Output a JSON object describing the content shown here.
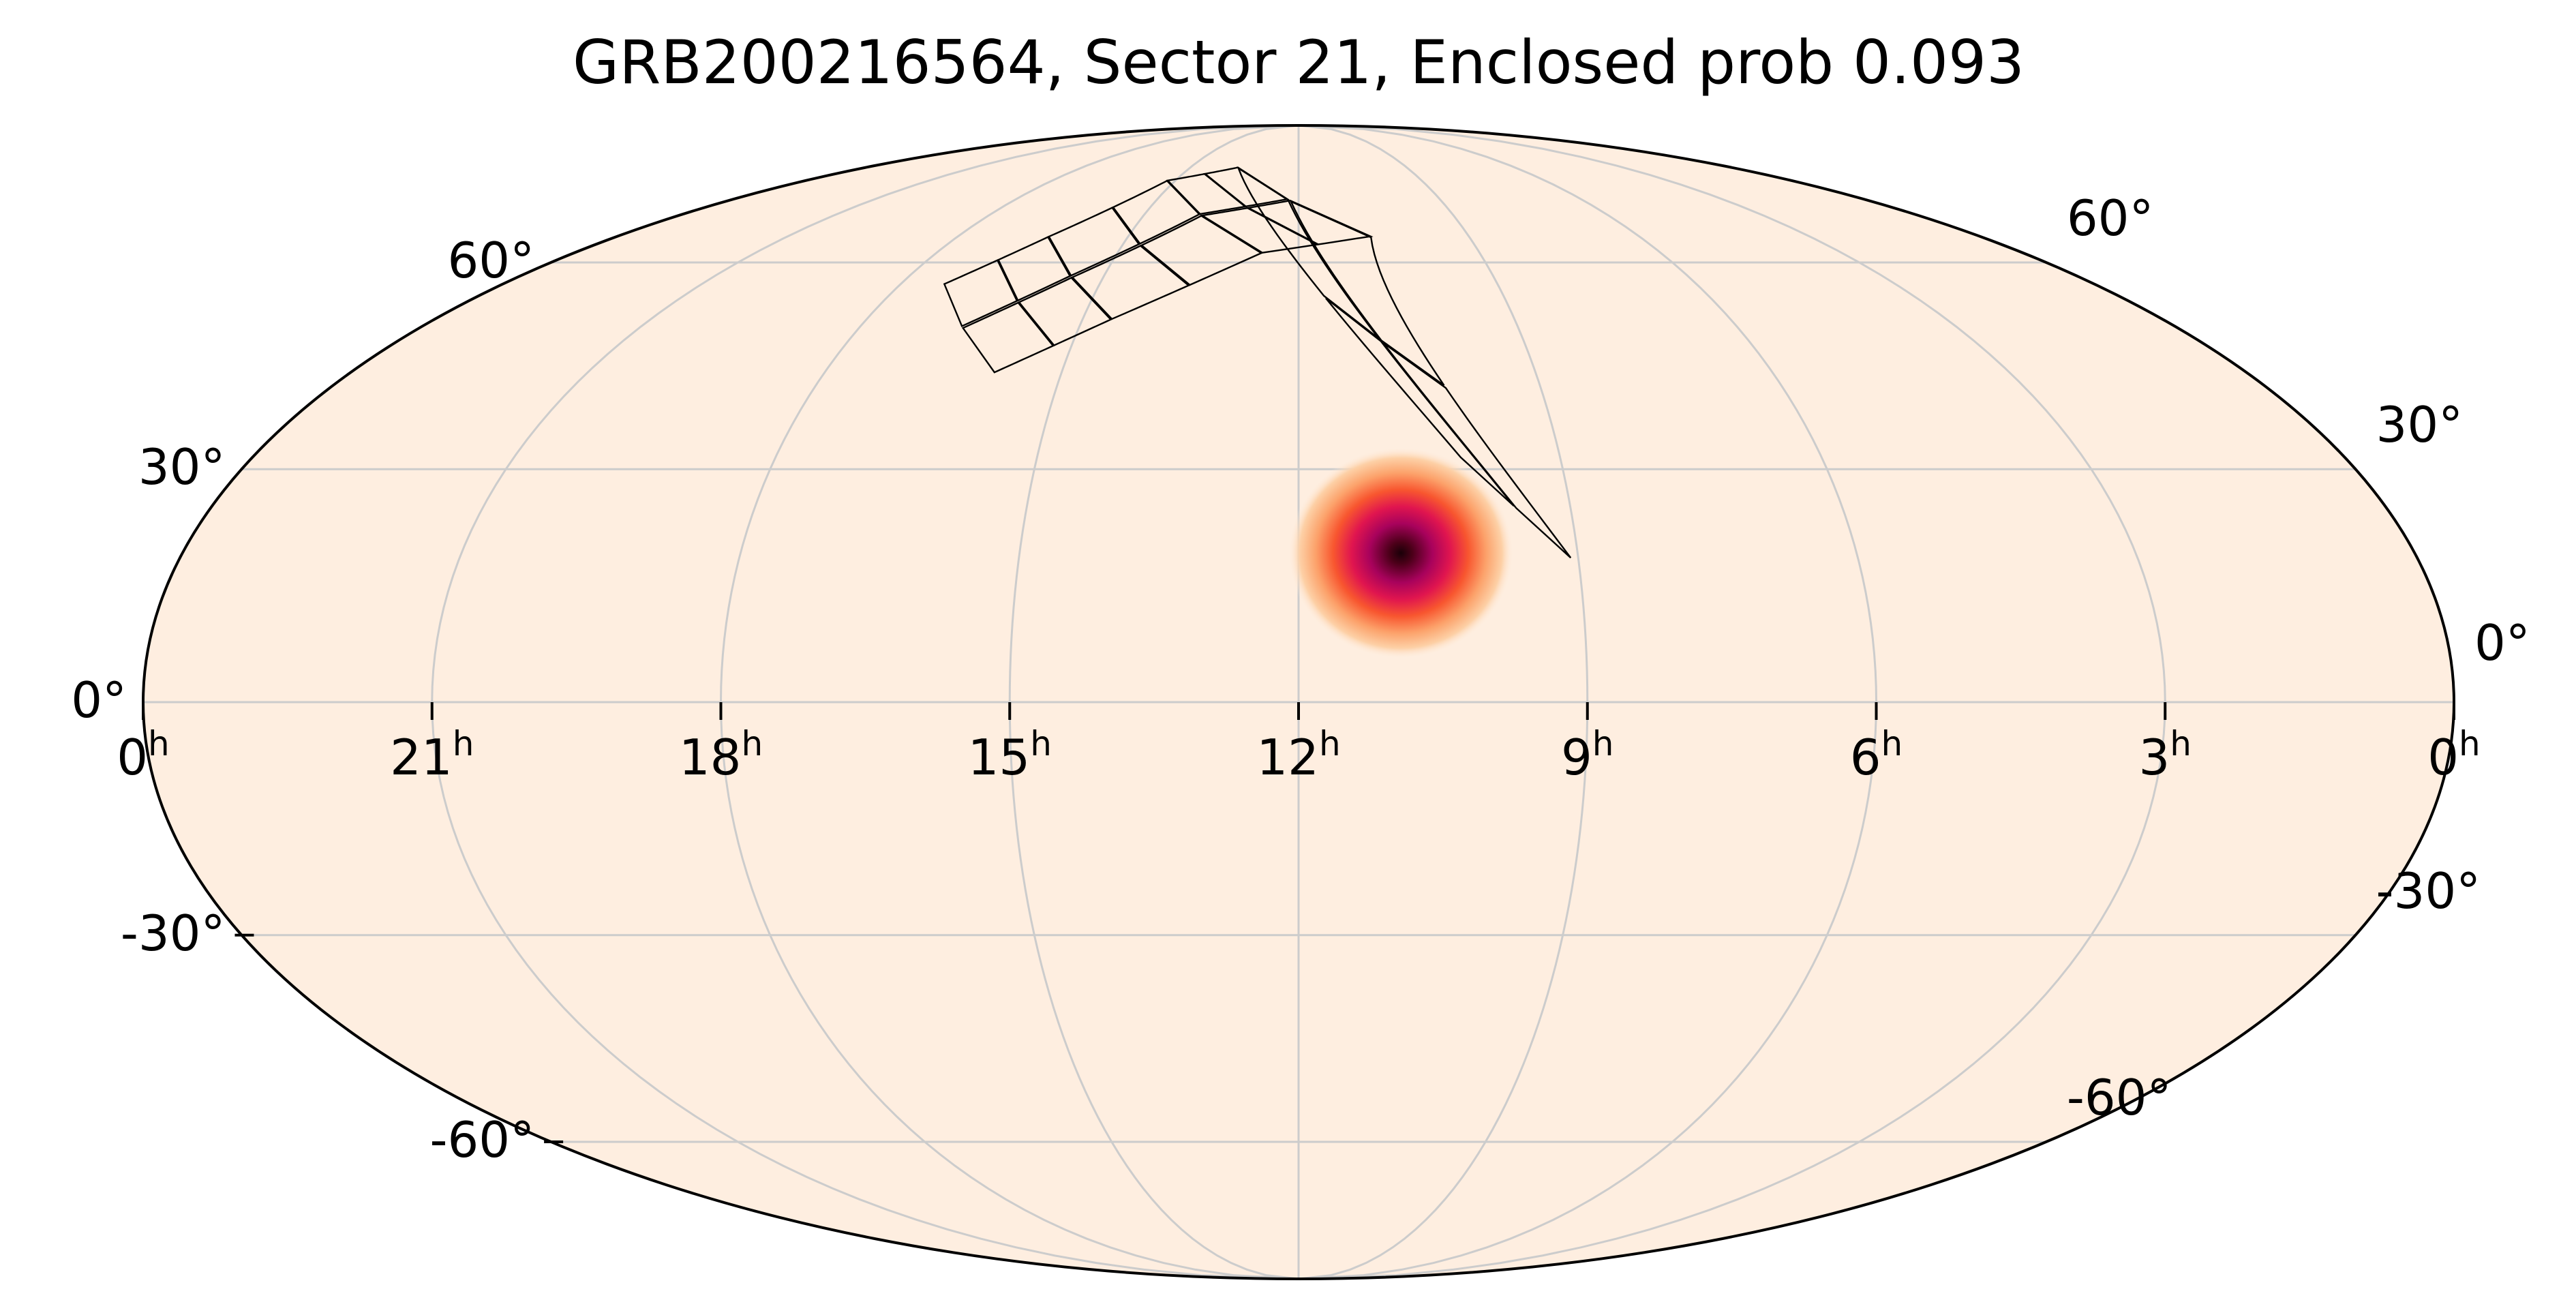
{
  "title": "GRB200216564, Sector 21, Enclosed prob 0.093",
  "projection": "mollweide",
  "colors": {
    "background": "#feeee0",
    "grid": "#cccccc",
    "outline": "#000000",
    "footprint": "#000000",
    "cmap": [
      "#feeee0",
      "#fdd0a6",
      "#fca26b",
      "#f8562f",
      "#e0154f",
      "#a8025c",
      "#4a0018",
      "#1a0008"
    ]
  },
  "ra_labels": [
    {
      "ra_h": 0,
      "text": "0",
      "sup": "h"
    },
    {
      "ra_h": 21,
      "text": "21",
      "sup": "h"
    },
    {
      "ra_h": 18,
      "text": "18",
      "sup": "h"
    },
    {
      "ra_h": 15,
      "text": "15",
      "sup": "h"
    },
    {
      "ra_h": 12,
      "text": "12",
      "sup": "h"
    },
    {
      "ra_h": 9,
      "text": "9",
      "sup": "h"
    },
    {
      "ra_h": 6,
      "text": "6",
      "sup": "h"
    },
    {
      "ra_h": 3,
      "text": "3",
      "sup": "h"
    },
    {
      "ra_h": 0,
      "text": "0",
      "sup": "h",
      "edge": "right"
    }
  ],
  "dec_labels": [
    {
      "dec": 60,
      "left": "60°",
      "right": "60°"
    },
    {
      "dec": 30,
      "left": "30°",
      "right": "30°"
    },
    {
      "dec": 0,
      "left": "0°",
      "right": "0°"
    },
    {
      "dec": -30,
      "left": "-30°",
      "right": "-30°"
    },
    {
      "dec": -60,
      "left": "-60°",
      "right": "-60°"
    }
  ],
  "grid": {
    "ra_lines_h": [
      0,
      3,
      6,
      9,
      12,
      15,
      18,
      21
    ],
    "dec_lines": [
      -60,
      -30,
      0,
      30,
      60
    ]
  },
  "localization": {
    "peak_ra_h": 10.9,
    "peak_dec": 19
  },
  "footprint": {
    "camera_start_ra_h": [
      16.6,
      15.5,
      13.9,
      12.2
    ],
    "camera_end_ra_h": [
      15.5,
      13.9,
      12.2,
      9.6
    ],
    "camera_start_dec": [
      49.9,
      57.7,
      68.2,
      71.0
    ],
    "camera_end_dec": [
      57.7,
      68.2,
      71.0,
      24.8
    ],
    "ccd_rows": 2
  }
}
